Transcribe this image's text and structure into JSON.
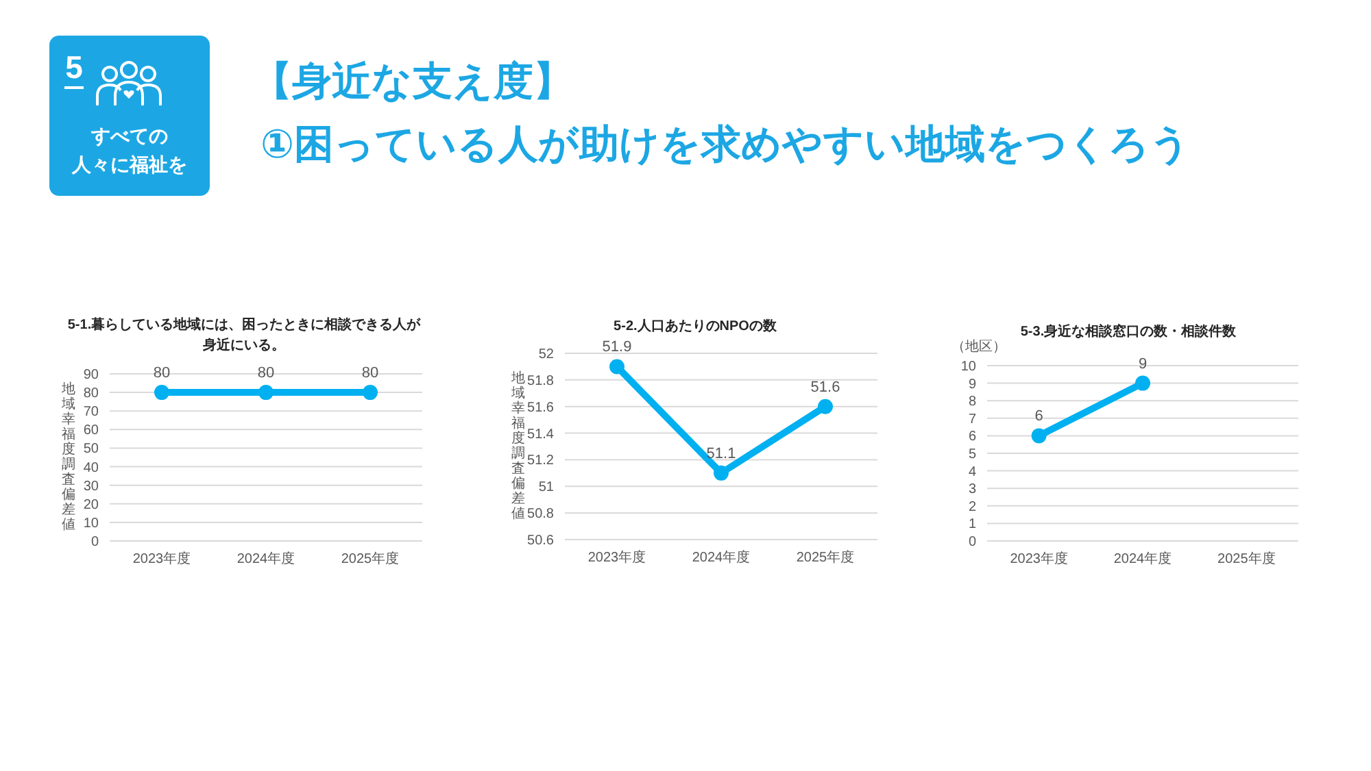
{
  "chart_data": [
    {
      "type": "other",
      "title": "【身近な支え度】",
      "subtitle": "①困っている人が助けを求めやすい地域をつくろう",
      "annotations": [
        "5",
        "すべての",
        "人々に福祉を"
      ],
      "color": "#1ca7e4"
    },
    {
      "type": "line",
      "title": "5-1.暮らしている地域には、困ったときに相談できる人が身近にいる。",
      "ylabel": "地域幸福度調査偏差値",
      "categories": [
        "2023年度",
        "2024年度",
        "2025年度"
      ],
      "values": [
        80,
        80,
        80
      ],
      "color": "#00b0f0",
      "ylim": [
        0,
        90
      ],
      "yticks": [
        0,
        10,
        20,
        30,
        40,
        50,
        60,
        70,
        80,
        90
      ],
      "grid": "y",
      "marker": "circle",
      "data_labels": true
    },
    {
      "type": "line",
      "title": "5-2.人口あたりのNPOの数",
      "ylabel": "地域幸福度調査偏差値",
      "categories": [
        "2023年度",
        "2024年度",
        "2025年度"
      ],
      "values": [
        51.9,
        51.1,
        51.6
      ],
      "color": "#00b0f0",
      "ylim": [
        50.6,
        52
      ],
      "yticks": [
        50.6,
        50.8,
        51,
        51.2,
        51.4,
        51.6,
        51.8,
        52
      ],
      "grid": "y",
      "marker": "circle",
      "data_labels": true
    },
    {
      "type": "line",
      "title": "5-3.身近な相談窓口の数・相談件数",
      "ylabel": "（地区）",
      "categories": [
        "2023年度",
        "2024年度",
        "2025年度"
      ],
      "values": [
        6,
        9,
        null
      ],
      "color": "#00b0f0",
      "ylim": [
        0,
        10
      ],
      "yticks": [
        0,
        1,
        2,
        3,
        4,
        5,
        6,
        7,
        8,
        9,
        10
      ],
      "grid": "y",
      "marker": "circle",
      "data_labels": true
    }
  ]
}
